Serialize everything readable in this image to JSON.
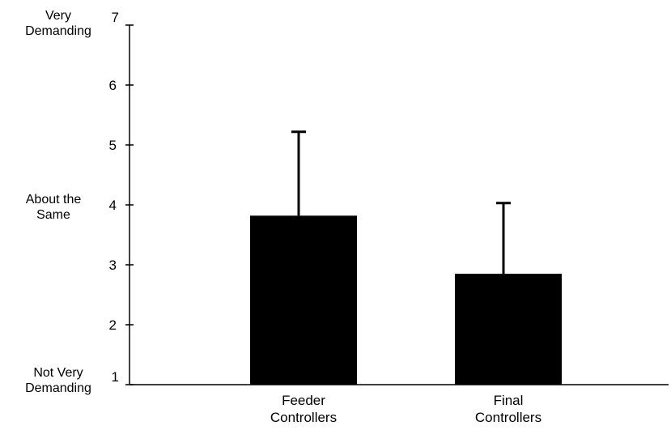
{
  "chart_data": {
    "type": "bar",
    "title": "",
    "xlabel": "",
    "ylabel": "",
    "ylim": [
      1,
      7
    ],
    "yticks": [
      1,
      2,
      3,
      4,
      5,
      6,
      7
    ],
    "y_anchor_labels": [
      {
        "value": 7,
        "lines": [
          "Very",
          "Demanding"
        ]
      },
      {
        "value": 4,
        "lines": [
          "About the",
          "Same"
        ]
      },
      {
        "value": 1,
        "lines": [
          "Not Very",
          "Demanding"
        ]
      }
    ],
    "categories": [
      {
        "lines": [
          "Feeder",
          "Controllers"
        ]
      },
      {
        "lines": [
          "Final",
          "Controllers"
        ]
      }
    ],
    "values": [
      3.82,
      2.85
    ],
    "error_upper": [
      5.22,
      4.03
    ],
    "grid": false,
    "legend": "none",
    "colors": {
      "bar": "#000000",
      "axis": "#000000",
      "background": "#ffffff"
    }
  }
}
